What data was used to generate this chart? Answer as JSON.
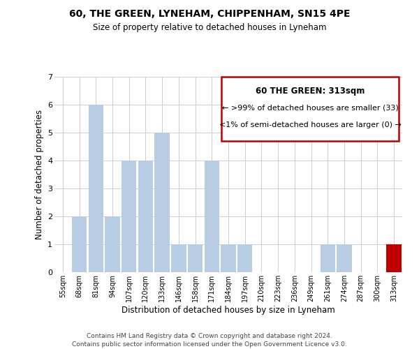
{
  "title": "60, THE GREEN, LYNEHAM, CHIPPENHAM, SN15 4PE",
  "subtitle": "Size of property relative to detached houses in Lyneham",
  "xlabel": "Distribution of detached houses by size in Lyneham",
  "ylabel": "Number of detached properties",
  "footer_line1": "Contains HM Land Registry data © Crown copyright and database right 2024.",
  "footer_line2": "Contains public sector information licensed under the Open Government Licence v3.0.",
  "bin_labels": [
    "55sqm",
    "68sqm",
    "81sqm",
    "94sqm",
    "107sqm",
    "120sqm",
    "133sqm",
    "146sqm",
    "158sqm",
    "171sqm",
    "184sqm",
    "197sqm",
    "210sqm",
    "223sqm",
    "236sqm",
    "249sqm",
    "261sqm",
    "274sqm",
    "287sqm",
    "300sqm",
    "313sqm"
  ],
  "bar_heights": [
    0,
    2,
    6,
    2,
    4,
    4,
    5,
    1,
    1,
    4,
    1,
    1,
    0,
    0,
    0,
    0,
    1,
    1,
    0,
    0,
    1
  ],
  "highlight_index": 20,
  "bar_color_normal": "#b8cce4",
  "bar_color_highlight": "#c00000",
  "ylim": [
    0,
    7
  ],
  "yticks": [
    0,
    1,
    2,
    3,
    4,
    5,
    6,
    7
  ],
  "legend_title": "60 THE GREEN: 313sqm",
  "legend_line1": "← >99% of detached houses are smaller (33)",
  "legend_line2": "<1% of semi-detached houses are larger (0) →",
  "legend_box_color": "#c00000",
  "background_color": "#ffffff"
}
